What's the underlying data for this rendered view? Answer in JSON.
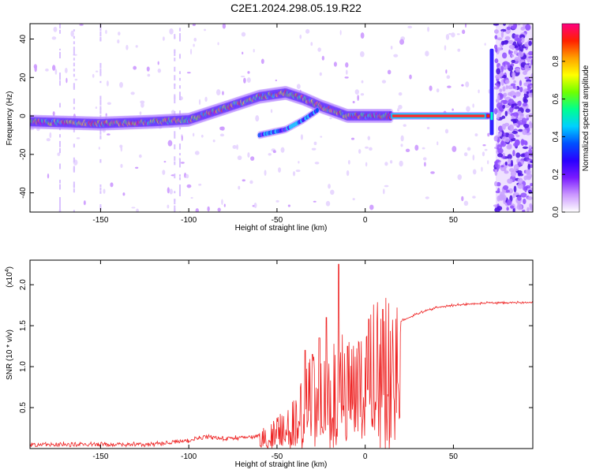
{
  "title": "C2E1.2024.298.05.19.R22",
  "chart_data": [
    {
      "type": "heatmap",
      "xlabel": "Height of straight line (km)",
      "ylabel": "Frequency (Hz)",
      "xlim": [
        -190,
        95
      ],
      "ylim": [
        -50,
        48
      ],
      "xticks": [
        -150,
        -100,
        -50,
        0,
        50
      ],
      "yticks": [
        -40,
        -20,
        0,
        20,
        40
      ],
      "colorbar": {
        "label": "Normalized spectral amplitude",
        "range": [
          0,
          1
        ],
        "ticks": [
          0.0,
          0.2,
          0.4,
          0.6,
          0.8
        ],
        "colors": [
          "#ffffff",
          "#cc99ff",
          "#7a1bff",
          "#2a00ff",
          "#0050ff",
          "#00d0ff",
          "#00ff90",
          "#70ff00",
          "#ffff00",
          "#ffa000",
          "#ff2000",
          "#ff0080"
        ]
      },
      "main_track": [
        {
          "x": -190,
          "y": -3
        },
        {
          "x": -150,
          "y": -4
        },
        {
          "x": -120,
          "y": -3
        },
        {
          "x": -100,
          "y": -2
        },
        {
          "x": -80,
          "y": 4
        },
        {
          "x": -60,
          "y": 10
        },
        {
          "x": -45,
          "y": 12
        },
        {
          "x": -35,
          "y": 9
        },
        {
          "x": -25,
          "y": 5
        },
        {
          "x": -10,
          "y": 0
        },
        {
          "x": 10,
          "y": 0
        },
        {
          "x": 40,
          "y": 0
        },
        {
          "x": 70,
          "y": 0
        }
      ],
      "secondary_track": [
        {
          "x": -60,
          "y": -10
        },
        {
          "x": -45,
          "y": -7
        },
        {
          "x": -35,
          "y": -2
        },
        {
          "x": -27,
          "y": 3
        }
      ],
      "noise_region": {
        "x_start": 74,
        "x_end": 95
      }
    },
    {
      "type": "line",
      "xlabel": "Height of straight line (km)",
      "ylabel": "SNR (10 * v/v)",
      "y_multiplier": "(x10",
      "y_multiplier_exp": "4",
      "xlim": [
        -190,
        95
      ],
      "ylim": [
        0,
        2.3
      ],
      "xticks": [
        -150,
        -100,
        -50,
        0,
        50
      ],
      "yticks": [
        0.5,
        1.0,
        1.5,
        2.0
      ],
      "ytick_labels": [
        "0.5",
        "1.0",
        "1.5",
        "2.0"
      ],
      "color": "#ee2222",
      "envelope": [
        {
          "x": -190,
          "y": 0.05
        },
        {
          "x": -120,
          "y": 0.05
        },
        {
          "x": -100,
          "y": 0.1
        },
        {
          "x": -90,
          "y": 0.15
        },
        {
          "x": -80,
          "y": 0.12
        },
        {
          "x": -60,
          "y": 0.15
        },
        {
          "x": -50,
          "y": 0.3
        },
        {
          "x": -40,
          "y": 0.45
        },
        {
          "x": -35,
          "y": 0.7
        },
        {
          "x": -30,
          "y": 0.85
        },
        {
          "x": -25,
          "y": 0.8
        },
        {
          "x": -20,
          "y": 0.9
        },
        {
          "x": -15,
          "y": 1.0
        },
        {
          "x": -10,
          "y": 1.1
        },
        {
          "x": -5,
          "y": 1.1
        },
        {
          "x": 0,
          "y": 1.2
        },
        {
          "x": 5,
          "y": 1.3
        },
        {
          "x": 10,
          "y": 1.35
        },
        {
          "x": 15,
          "y": 1.45
        },
        {
          "x": 20,
          "y": 1.55
        },
        {
          "x": 30,
          "y": 1.65
        },
        {
          "x": 40,
          "y": 1.72
        },
        {
          "x": 50,
          "y": 1.75
        },
        {
          "x": 70,
          "y": 1.78
        },
        {
          "x": 95,
          "y": 1.78
        }
      ],
      "spikes": [
        {
          "x": -15,
          "y": 2.25
        },
        {
          "x": -22,
          "y": 1.6
        },
        {
          "x": -34,
          "y": 1.2
        },
        {
          "x": -10,
          "y": 1.25
        },
        {
          "x": 2,
          "y": 1.58
        },
        {
          "x": 10,
          "y": 1.7
        },
        {
          "x": -30,
          "y": 1.15
        },
        {
          "x": -26,
          "y": 1.35
        }
      ]
    }
  ]
}
